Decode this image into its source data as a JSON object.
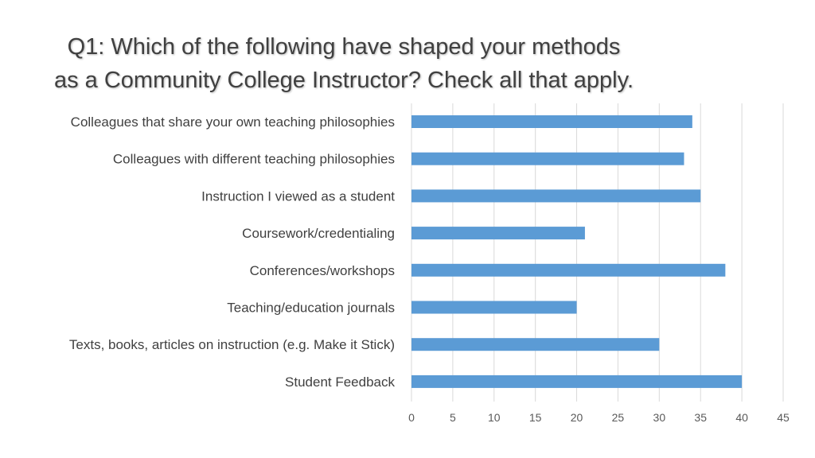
{
  "slide": {
    "title_line1": "Q1: Which of the following have shaped your methods",
    "title_line2": "as a Community College Instructor? Check all that apply."
  },
  "chart_data": {
    "type": "bar",
    "orientation": "horizontal",
    "categories": [
      "Colleagues that share your own teaching philosophies",
      "Colleagues with different teaching philosophies",
      "Instruction I viewed as a student",
      "Coursework/credentialing",
      "Conferences/workshops",
      "Teaching/education journals",
      "Texts, books, articles on instruction (e.g. Make it Stick)",
      "Student Feedback"
    ],
    "values": [
      34,
      33,
      35,
      21,
      38,
      20,
      30,
      40
    ],
    "xlim": [
      0,
      45
    ],
    "xticks": [
      "0",
      "5",
      "10",
      "15",
      "20",
      "25",
      "30",
      "35",
      "40",
      "45"
    ],
    "grid": true,
    "legend": "none",
    "bar_color": "#5B9BD5",
    "grid_color": "#D9D9D9"
  }
}
